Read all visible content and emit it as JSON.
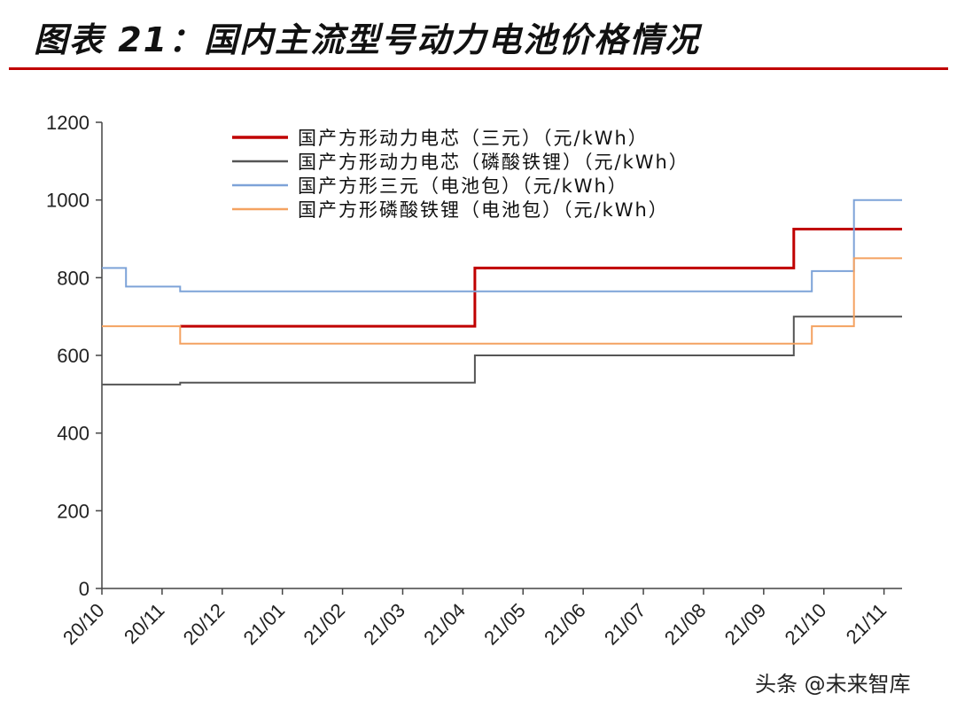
{
  "figure": {
    "title": "图表 21：国内主流型号动力电池价格情况",
    "watermark": "头条 @未来智库"
  },
  "colors": {
    "title_rule": "#c00000",
    "axis": "#444444"
  },
  "chart_data": {
    "type": "line",
    "step": true,
    "title": "",
    "xlabel": "",
    "ylabel": "",
    "ylim": [
      0,
      1200
    ],
    "yticks": [
      0,
      200,
      400,
      600,
      800,
      1000,
      1200
    ],
    "xticks": [
      "20/10",
      "20/11",
      "20/12",
      "21/01",
      "21/02",
      "21/03",
      "21/04",
      "21/05",
      "21/06",
      "21/07",
      "21/08",
      "21/09",
      "21/10",
      "21/11"
    ],
    "xrange": [
      0,
      13.3
    ],
    "grid": false,
    "legend_position": "top",
    "series": [
      {
        "name": "国产方形动力电芯（三元）（元/kWh）",
        "color": "#c00000",
        "width": 3,
        "points": [
          [
            1.3,
            675
          ],
          [
            6.2,
            675
          ],
          [
            6.2,
            825
          ],
          [
            11.5,
            825
          ],
          [
            11.5,
            925
          ],
          [
            13.3,
            925
          ]
        ]
      },
      {
        "name": "国产方形动力电芯（磷酸铁锂）（元/kWh）",
        "color": "#555555",
        "width": 2,
        "points": [
          [
            0,
            525
          ],
          [
            1.3,
            525
          ],
          [
            1.3,
            530
          ],
          [
            6.2,
            530
          ],
          [
            6.2,
            600
          ],
          [
            11.5,
            600
          ],
          [
            11.5,
            700
          ],
          [
            13.3,
            700
          ]
        ]
      },
      {
        "name": "国产方形三元（电池包）（元/kWh）",
        "color": "#7da3d8",
        "width": 2,
        "points": [
          [
            0,
            825
          ],
          [
            0.4,
            825
          ],
          [
            0.4,
            777
          ],
          [
            1.3,
            777
          ],
          [
            1.3,
            765
          ],
          [
            11.8,
            765
          ],
          [
            11.8,
            817
          ],
          [
            12.5,
            817
          ],
          [
            12.5,
            1000
          ],
          [
            13.3,
            1000
          ]
        ]
      },
      {
        "name": "国产方形磷酸铁锂（电池包）（元/kWh）",
        "color": "#f4a261",
        "width": 2,
        "points": [
          [
            0,
            675
          ],
          [
            1.3,
            675
          ],
          [
            1.3,
            630
          ],
          [
            11.8,
            630
          ],
          [
            11.8,
            675
          ],
          [
            12.5,
            675
          ],
          [
            12.5,
            850
          ],
          [
            13.3,
            850
          ]
        ]
      }
    ]
  }
}
